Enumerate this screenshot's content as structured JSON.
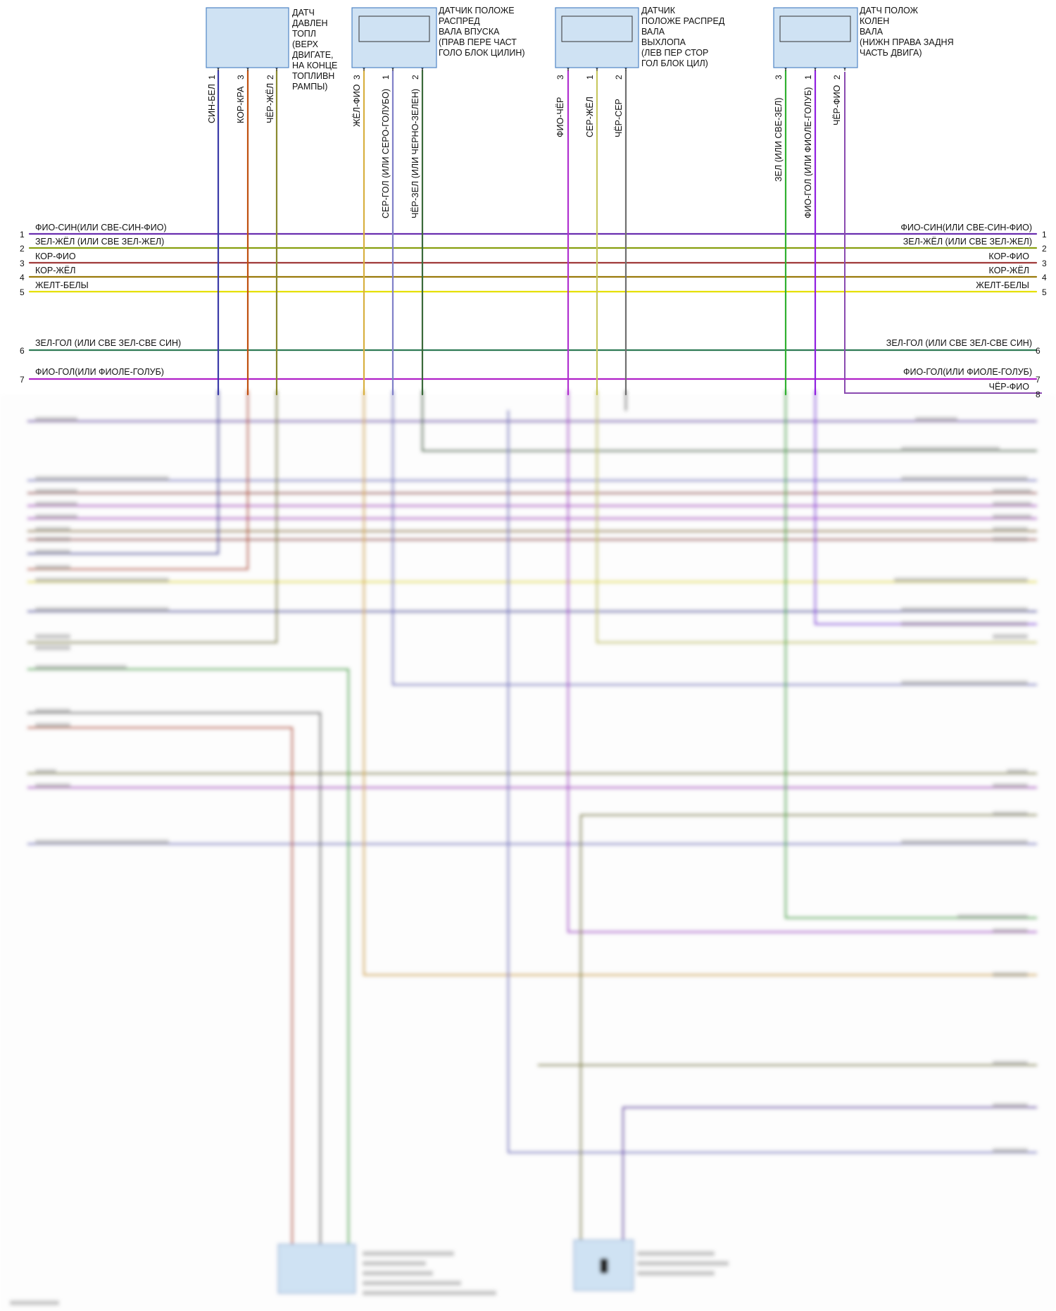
{
  "colors": {
    "ФИО-СИН": "#6a2fb0",
    "ЗЕЛ-ЖЁЛ": "#88a010",
    "КОР-ФИО": "#a03a3a",
    "КОР-ЖЁЛ": "#9a7a0a",
    "ЖЕЛТ-БЕЛЫ": "#e6e000",
    "ЗЕЛ-ГОЛ": "#2e7a55",
    "ФИО-ГОЛ": "#b020c8",
    "СИН-БЕЛ": "#3a3aa8",
    "КОР-КРА": "#c05010",
    "ЧЁР-ЖЁЛ": "#8a8a30",
    "ЖЁЛ-ФИО": "#d8b040",
    "СЕР-ГОЛ": "#8080c8",
    "ЧЁР-ЗЕЛ": "#3a6a3a",
    "ФИО-ЧЁР": "#b030d0",
    "СЕР-ЖЁЛ": "#c8c860",
    "ЧЁР-СЕР": "#707070",
    "ЗЕЛ": "#30b030",
    "ФИО-ГОЛ-R": "#9020e0",
    "ЧЁР-ФИО": "#8a4ab0",
    "component_fill": "#cfe2f3",
    "component_box": "#4f86c6"
  },
  "components": [
    {
      "label": [
        "ДАТЧ",
        "ДАВЛЕН",
        "ТОПЛ",
        "(ВЕРХ",
        "ДВИГАТЕ,",
        "НА КОНЦЕ",
        "ТОПЛИВН",
        "РАМПЫ)"
      ],
      "pins": [
        "1",
        "3",
        "2"
      ],
      "wires": [
        "СИН-БЕЛ",
        "КОР-КРА",
        "ЧЁР-ЖЁЛ"
      ]
    },
    {
      "label": [
        "ДАТЧИК ПОЛОЖЕ",
        "РАСПРЕД",
        "ВАЛА ВПУСКА",
        "(ПРАВ ПЕРЕ ЧАСТ",
        "ГОЛО БЛОК ЦИЛИН)"
      ],
      "pins": [
        "3",
        "1",
        "2"
      ],
      "wires": [
        "ЖЁЛ-ФИО",
        "СЕР-ГОЛ (ИЛИ СЕРО-ГОЛУБО)",
        "ЧЁР-ЗЕЛ (ИЛИ ЧЕРНО-ЗЕЛЕН)"
      ]
    },
    {
      "label": [
        "ДАТЧИК",
        "ПОЛОЖЕ РАСПРЕД",
        "ВАЛА",
        "ВЫХЛОПА",
        "(ЛЕВ ПЕР СТОР",
        "ГОЛ БЛОК ЦИЛ)"
      ],
      "pins": [
        "3",
        "1",
        "2"
      ],
      "wires": [
        "ФИО-ЧЁР",
        "СЕР-ЖЁЛ",
        "ЧЁР-СЕР"
      ]
    },
    {
      "label": [
        "ДАТЧ ПОЛОЖ",
        "КОЛЕН",
        "ВАЛА",
        "(НИЖН ПРАВА ЗАДНЯ",
        "ЧАСТЬ ДВИГА)"
      ],
      "pins": [
        "3",
        "1",
        "2"
      ],
      "wires": [
        "ЗЕЛ (ИЛИ СВЕ-ЗЕЛ)",
        "ФИО-ГОЛ (ИЛИ ФИОЛЕ-ГОЛУБ)",
        "ЧЁР-ФИО"
      ]
    }
  ],
  "harness": {
    "left": [
      {
        "num": "1",
        "label": "ФИО-СИН(ИЛИ СВЕ-СИН-ФИО)"
      },
      {
        "num": "2",
        "label": "ЗЕЛ-ЖЁЛ  (ИЛИ СВЕ ЗЕЛ-ЖЕЛ)"
      },
      {
        "num": "3",
        "label": "КОР-ФИО"
      },
      {
        "num": "4",
        "label": "КОР-ЖЁЛ"
      },
      {
        "num": "5",
        "label": "ЖЕЛТ-БЕЛЫ"
      },
      {
        "num": "6",
        "label": "ЗЕЛ-ГОЛ   (ИЛИ СВЕ ЗЕЛ-СВЕ СИН)"
      },
      {
        "num": "7",
        "label": "ФИО-ГОЛ(ИЛИ ФИОЛЕ-ГОЛУБ)"
      }
    ],
    "right": [
      {
        "num": "1",
        "label": "ФИО-СИН(ИЛИ СВЕ-СИН-ФИО)"
      },
      {
        "num": "2",
        "label": "ЗЕЛ-ЖЁЛ (ИЛИ СВЕ ЗЕЛ-ЖЕЛ)"
      },
      {
        "num": "3",
        "label": "КОР-ФИО"
      },
      {
        "num": "4",
        "label": "КОР-ЖЁЛ"
      },
      {
        "num": "5",
        "label": "ЖЕЛТ-БЕЛЫ"
      },
      {
        "num": "6",
        "label": "ЗЕЛ-ГОЛ (ИЛИ СВЕ ЗЕЛ-СВЕ СИН)"
      },
      {
        "num": "7",
        "label": "ФИО-ГОЛ(ИЛИ ФИОЛЕ-ГОЛУБ)"
      },
      {
        "num": "8",
        "label": "ЧЁР-ФИО"
      }
    ]
  }
}
